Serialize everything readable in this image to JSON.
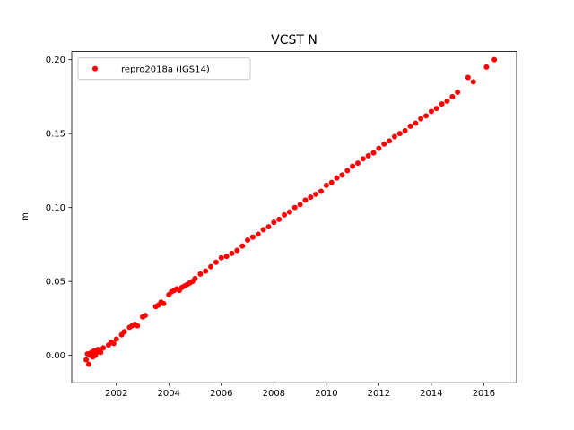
{
  "chart_data": {
    "type": "scatter",
    "title": "VCST N",
    "xlabel": "",
    "ylabel": "m",
    "xlim": [
      2000.3,
      2017.25
    ],
    "ylim": [
      -0.0185,
      0.2055
    ],
    "x_ticks": [
      2002,
      2004,
      2006,
      2008,
      2010,
      2012,
      2014,
      2016
    ],
    "x_tick_labels": [
      "2002",
      "2004",
      "2006",
      "2008",
      "2010",
      "2012",
      "2014",
      "2016"
    ],
    "y_ticks": [
      0.0,
      0.05,
      0.1,
      0.15,
      0.2
    ],
    "y_tick_labels": [
      "0.00",
      "0.05",
      "0.10",
      "0.15",
      "0.20"
    ],
    "grid": false,
    "legend_position": "top-left",
    "series": [
      {
        "name": "repro2018a (IGS14)",
        "color": "#ff0000",
        "marker": "circle",
        "x": [
          2000.85,
          2000.9,
          2000.95,
          2001.0,
          2001.05,
          2001.1,
          2001.15,
          2001.2,
          2001.25,
          2001.3,
          2001.35,
          2001.4,
          2001.5,
          2001.7,
          2001.8,
          2001.9,
          2002.0,
          2002.2,
          2002.3,
          2002.5,
          2002.6,
          2002.7,
          2002.8,
          2003.0,
          2003.1,
          2003.5,
          2003.6,
          2003.7,
          2003.8,
          2004.0,
          2004.1,
          2004.2,
          2004.3,
          2004.4,
          2004.5,
          2004.6,
          2004.7,
          2004.8,
          2004.9,
          2005.0,
          2005.2,
          2005.4,
          2005.6,
          2005.8,
          2006.0,
          2006.2,
          2006.4,
          2006.6,
          2006.8,
          2007.0,
          2007.2,
          2007.4,
          2007.6,
          2007.8,
          2008.0,
          2008.2,
          2008.4,
          2008.6,
          2008.8,
          2009.0,
          2009.2,
          2009.4,
          2009.6,
          2009.8,
          2010.0,
          2010.2,
          2010.4,
          2010.6,
          2010.8,
          2011.0,
          2011.2,
          2011.4,
          2011.6,
          2011.8,
          2012.0,
          2012.2,
          2012.4,
          2012.6,
          2012.8,
          2013.0,
          2013.2,
          2013.4,
          2013.6,
          2013.8,
          2014.0,
          2014.2,
          2014.4,
          2014.6,
          2014.8,
          2015.0,
          2015.4,
          2015.6,
          2016.1,
          2016.4
        ],
        "y": [
          -0.003,
          0.001,
          -0.006,
          0.0,
          0.002,
          -0.001,
          0.003,
          0.0,
          0.002,
          0.004,
          0.003,
          0.002,
          0.005,
          0.007,
          0.009,
          0.008,
          0.011,
          0.014,
          0.016,
          0.019,
          0.02,
          0.021,
          0.02,
          0.026,
          0.027,
          0.033,
          0.034,
          0.036,
          0.035,
          0.041,
          0.043,
          0.044,
          0.045,
          0.044,
          0.046,
          0.047,
          0.048,
          0.049,
          0.05,
          0.052,
          0.055,
          0.057,
          0.06,
          0.063,
          0.066,
          0.067,
          0.069,
          0.071,
          0.074,
          0.078,
          0.08,
          0.082,
          0.085,
          0.087,
          0.09,
          0.092,
          0.095,
          0.097,
          0.1,
          0.102,
          0.105,
          0.107,
          0.109,
          0.111,
          0.115,
          0.117,
          0.12,
          0.122,
          0.125,
          0.128,
          0.13,
          0.133,
          0.135,
          0.137,
          0.14,
          0.143,
          0.145,
          0.148,
          0.15,
          0.152,
          0.155,
          0.157,
          0.16,
          0.162,
          0.165,
          0.167,
          0.17,
          0.172,
          0.175,
          0.178,
          0.188,
          0.185,
          0.195,
          0.2
        ]
      }
    ]
  }
}
